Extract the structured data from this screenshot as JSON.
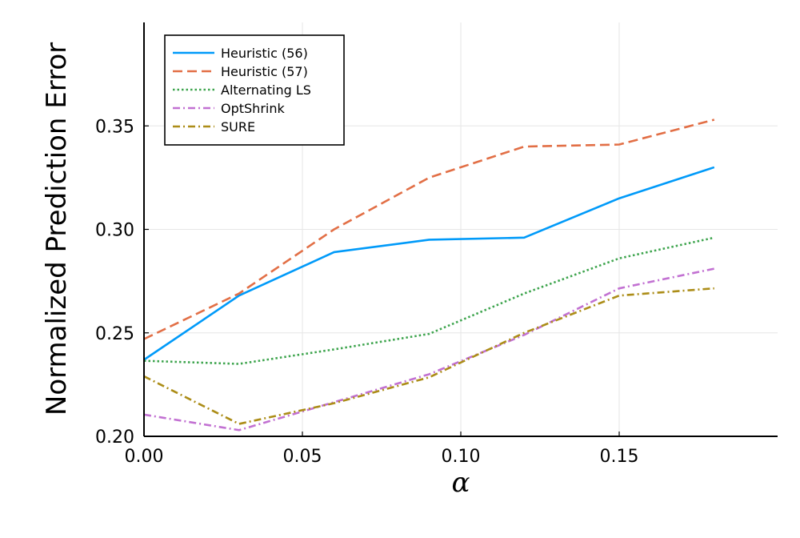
{
  "chart_data": {
    "type": "line",
    "title": "",
    "xlabel": "α",
    "ylabel": "Normalized Prediction Error",
    "xlim": [
      0,
      0.2
    ],
    "ylim": [
      0.2,
      0.4
    ],
    "x_ticks": [
      "0.00",
      "0.05",
      "0.10",
      "0.15"
    ],
    "y_ticks": [
      "0.20",
      "0.25",
      "0.30",
      "0.35"
    ],
    "grid": true,
    "legend_position": "top-left",
    "x": [
      0.0,
      0.03,
      0.06,
      0.09,
      0.12,
      0.15,
      0.18
    ],
    "series": [
      {
        "name": "Heuristic (56)",
        "color": "#009af9",
        "dash": "solid",
        "values": [
          0.237,
          0.268,
          0.289,
          0.295,
          0.296,
          0.315,
          0.33
        ]
      },
      {
        "name": "Heuristic (57)",
        "color": "#e26f46",
        "dash": "dashed",
        "values": [
          0.247,
          0.269,
          0.3,
          0.325,
          0.34,
          0.341,
          0.353
        ]
      },
      {
        "name": "Alternating LS",
        "color": "#3da44d",
        "dash": "dotted",
        "values": [
          0.2365,
          0.235,
          0.242,
          0.2495,
          0.269,
          0.286,
          0.296
        ]
      },
      {
        "name": "OptShrink",
        "color": "#c271d2",
        "dash": "dashdot",
        "values": [
          0.2105,
          0.203,
          0.2165,
          0.23,
          0.249,
          0.2715,
          0.281
        ]
      },
      {
        "name": "SURE",
        "color": "#ac8d18",
        "dash": "dashdot",
        "values": [
          0.229,
          0.206,
          0.216,
          0.2285,
          0.25,
          0.268,
          0.2715
        ]
      }
    ]
  }
}
